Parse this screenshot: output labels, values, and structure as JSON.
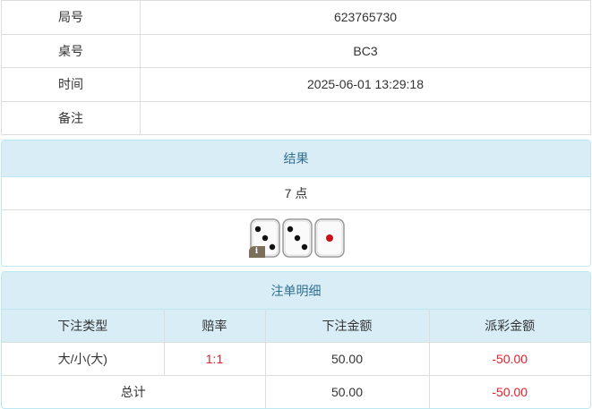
{
  "info": [
    {
      "label": "局号",
      "value": "623765730"
    },
    {
      "label": "桌号",
      "value": "BC3"
    },
    {
      "label": "时间",
      "value": "2025-06-01 13:29:18"
    },
    {
      "label": "备注",
      "value": ""
    }
  ],
  "result": {
    "title": "结果",
    "points": "7 点",
    "dice": [
      3,
      3,
      1
    ],
    "badge": "i"
  },
  "bets": {
    "title": "注单明细",
    "headers": [
      "下注类型",
      "赔率",
      "下注金额",
      "派彩金额"
    ],
    "rows": [
      {
        "type": "大/小(大)",
        "odds": "1:1",
        "amount": "50.00",
        "payout": "-50.00"
      }
    ],
    "total": {
      "label": "总计",
      "amount": "50.00",
      "payout": "-50.00"
    }
  },
  "colors": {
    "accent": "#31708f",
    "header_bg": "#d9edf7",
    "negative": "#e4202c"
  }
}
